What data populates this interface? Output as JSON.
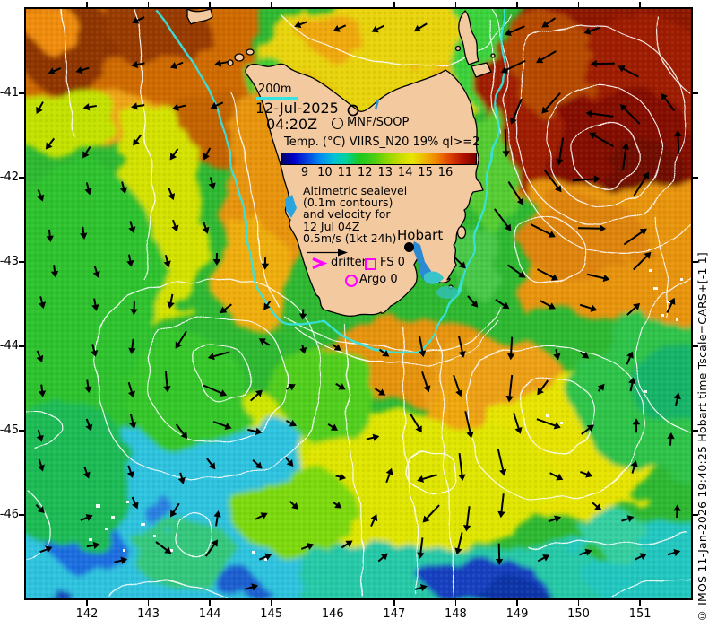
{
  "map": {
    "depth_label": "200m",
    "datetime": {
      "date": "12-Jul-2025",
      "time": "04:20Z"
    },
    "platform_label": "MNF/SOOP",
    "colorbar": {
      "title": "Temp. (°C) VIIRS_N20 19% ql>=2",
      "ticks": [
        "9",
        "10",
        "11",
        "12",
        "13",
        "14",
        "15",
        "16"
      ],
      "gradient": [
        "#00006e 0%",
        "#0000c8 6%",
        "#0044e1 13%",
        "#0090f0 20%",
        "#00c3d2 27%",
        "#00d29b 33%",
        "#1ec81e 40%",
        "#46cd14 47%",
        "#8cd700 54%",
        "#c8dc00 61%",
        "#e6e600 67%",
        "#f0b400 74%",
        "#f08200 80%",
        "#e14600 86%",
        "#b41400 93%",
        "#7a0000 100%"
      ]
    },
    "annotation_lines": [
      "Altimetric sealevel",
      "(0.1m contours)",
      "and velocity for",
      "12 Jul 04Z",
      "0.5m/s (1kt 24h)"
    ],
    "legend_markers": {
      "drifter": "drifter",
      "fs": "FS 0",
      "argo": "Argo 0"
    },
    "city": "Hobart",
    "axes": {
      "lon_labels": [
        "142",
        "143",
        "144",
        "145",
        "146",
        "147",
        "148",
        "149",
        "150",
        "151"
      ],
      "lat_labels": [
        "-41",
        "-42",
        "-43",
        "-44",
        "-45",
        "-46"
      ]
    },
    "credit": "© IMOS 11-Jan-2026 19:40:25 Hobart time Tscale=CARS+[-1 1]",
    "colors": {
      "magenta": "#ff00ff",
      "contour_200m": "#35e3e0",
      "land": "#f3c9a0",
      "sealevel_contour": "#ffffff",
      "arrow": "#000000"
    }
  }
}
